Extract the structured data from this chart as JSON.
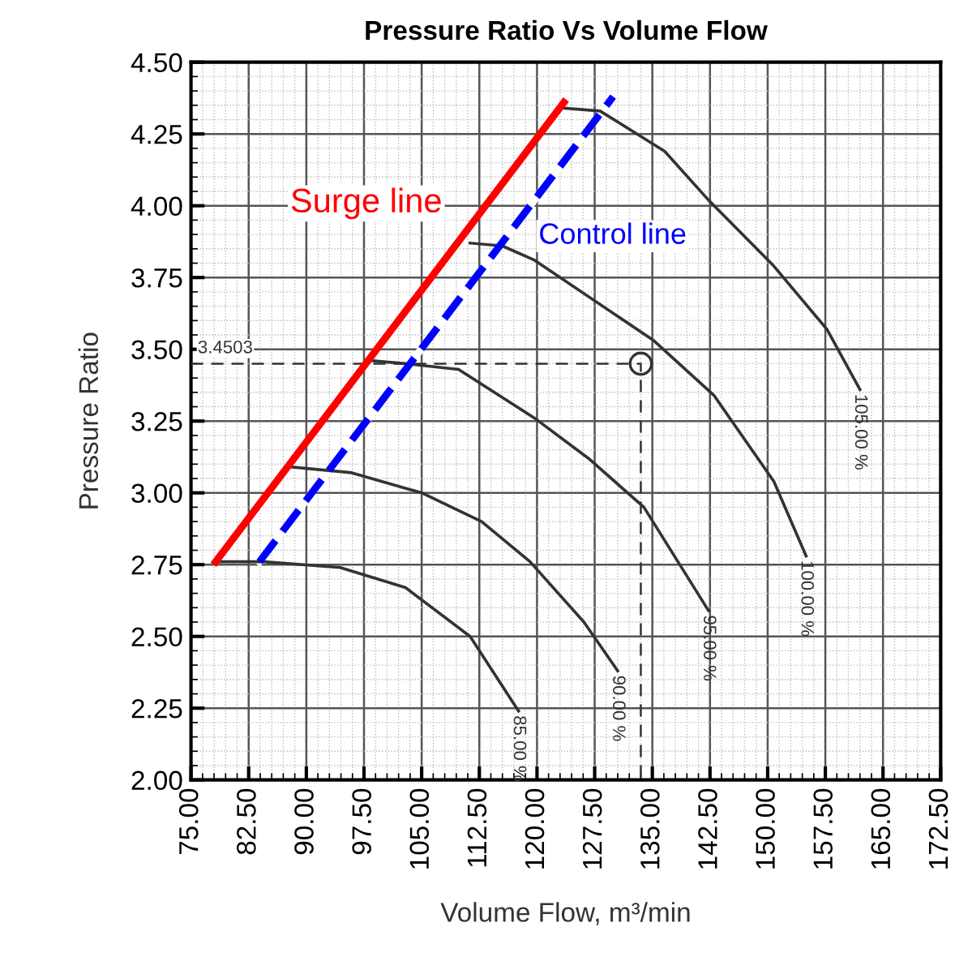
{
  "chart_data": {
    "type": "line",
    "title": "Pressure Ratio Vs Volume Flow",
    "xlabel": "Volume Flow, m³/min",
    "ylabel": "Pressure Ratio",
    "xlim": [
      75,
      172.5
    ],
    "ylim": [
      2.0,
      4.5
    ],
    "xticks": [
      {
        "value": 75,
        "label": "75.00"
      },
      {
        "value": 82.5,
        "label": "82.50"
      },
      {
        "value": 90,
        "label": "90.00"
      },
      {
        "value": 97.5,
        "label": "97.50"
      },
      {
        "value": 105,
        "label": "105.00"
      },
      {
        "value": 112.5,
        "label": "112.50"
      },
      {
        "value": 120,
        "label": "120.00"
      },
      {
        "value": 127.5,
        "label": "127.50"
      },
      {
        "value": 135,
        "label": "135.00"
      },
      {
        "value": 142.5,
        "label": "142.50"
      },
      {
        "value": 150,
        "label": "150.00"
      },
      {
        "value": 157.5,
        "label": "157.50"
      },
      {
        "value": 165,
        "label": "165.00"
      },
      {
        "value": 172.5,
        "label": "172.50"
      }
    ],
    "yticks": [
      {
        "value": 2.0,
        "label": "2.00"
      },
      {
        "value": 2.25,
        "label": "2.25"
      },
      {
        "value": 2.5,
        "label": "2.50"
      },
      {
        "value": 2.75,
        "label": "2.75"
      },
      {
        "value": 3.0,
        "label": "3.00"
      },
      {
        "value": 3.25,
        "label": "3.25"
      },
      {
        "value": 3.5,
        "label": "3.50"
      },
      {
        "value": 3.75,
        "label": "3.75"
      },
      {
        "value": 4.0,
        "label": "4.00"
      },
      {
        "value": 4.25,
        "label": "4.25"
      },
      {
        "value": 4.5,
        "label": "4.50"
      }
    ],
    "grid": true,
    "legend": false,
    "series": [
      {
        "color": "#333333",
        "x": [
          78.6,
          84.5,
          94.4,
          102.9,
          111.3,
          117.6
        ],
        "values": [
          2.76,
          2.76,
          2.74,
          2.67,
          2.5,
          2.24
        ]
      },
      {
        "color": "#333333",
        "x": [
          88.1,
          95.9,
          105.0,
          112.8,
          119.1,
          126.1,
          130.5
        ],
        "values": [
          3.09,
          3.07,
          3.0,
          2.9,
          2.76,
          2.55,
          2.38
        ]
      },
      {
        "color": "#333333",
        "x": [
          98.6,
          102.9,
          109.8,
          119.7,
          126.7,
          133.9,
          142.3
        ],
        "values": [
          3.46,
          3.45,
          3.43,
          3.26,
          3.12,
          2.95,
          2.59
        ]
      },
      {
        "color": "#333333",
        "x": [
          111.3,
          115.5,
          119.7,
          135.2,
          143.0,
          150.8,
          155.0
        ],
        "values": [
          3.87,
          3.86,
          3.81,
          3.53,
          3.34,
          3.04,
          2.78
        ]
      },
      {
        "color": "#333333",
        "x": [
          123.5,
          128.2,
          136.6,
          142.3,
          150.8,
          157.7,
          162.0
        ],
        "values": [
          4.34,
          4.33,
          4.19,
          4.02,
          3.79,
          3.57,
          3.36
        ]
      },
      {
        "color": "#333333",
        "line_style": "dashed",
        "x": [
          75,
          133.5,
          133.5
        ],
        "values": [
          3.45,
          3.45,
          2.0
        ]
      },
      {
        "type": "scatter",
        "marker": "circle",
        "color": "#333333",
        "x": [
          133.5
        ],
        "values": [
          3.45
        ]
      },
      {
        "name": "Surge line",
        "color": "#ff0000",
        "x": [
          78.2,
          123.5
        ],
        "values": [
          2.76,
          4.36
        ]
      },
      {
        "name": "Control line",
        "color": "#0000ff",
        "line_style": "dashed",
        "x": [
          83.9,
          129.9
        ],
        "values": [
          2.76,
          4.38
        ]
      }
    ],
    "annotations": [
      {
        "text": "3.4503",
        "x": 75,
        "y": 3.45
      },
      {
        "text": "85.00 %",
        "x": 117.6,
        "y": 2.24
      },
      {
        "text": "90.00 %",
        "x": 130.5,
        "y": 2.38
      },
      {
        "text": "95.00 %",
        "x": 142.3,
        "y": 2.59
      },
      {
        "text": "100.00 %",
        "x": 155.0,
        "y": 2.78
      },
      {
        "text": "105.00 %",
        "x": 162.0,
        "y": 3.36
      }
    ]
  }
}
